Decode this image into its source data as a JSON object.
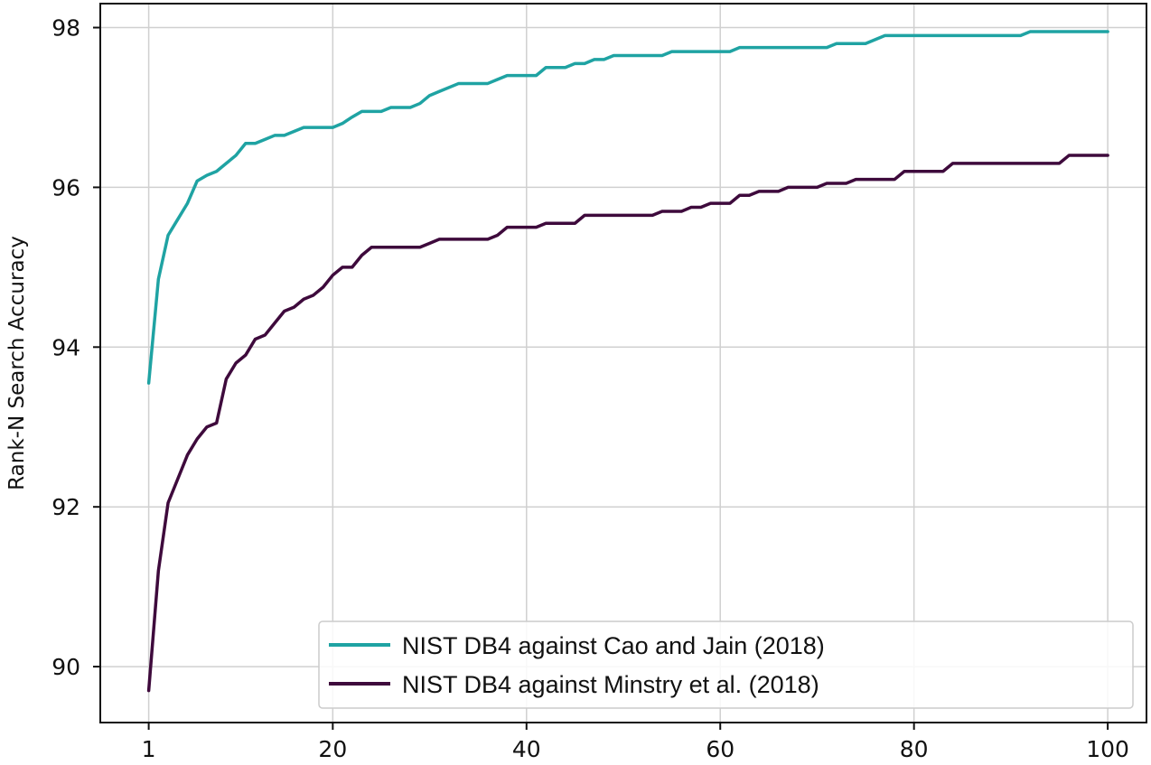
{
  "chart_data": {
    "type": "line",
    "title": "",
    "xlabel": "",
    "ylabel": "Rank-N Search Accuracy",
    "xlim": [
      -4,
      104
    ],
    "ylim": [
      89.3,
      98.3
    ],
    "xticks": [
      1,
      20,
      40,
      60,
      80,
      100
    ],
    "yticks": [
      90,
      92,
      94,
      96,
      98
    ],
    "grid": true,
    "legend_position": "lower-right",
    "series": [
      {
        "name": "NIST DB4 against Cao and Jain (2018)",
        "color": "#1fa3a3",
        "points": [
          [
            1,
            93.55
          ],
          [
            2,
            94.85
          ],
          [
            3,
            95.4
          ],
          [
            4,
            95.6
          ],
          [
            5,
            95.8
          ],
          [
            6,
            96.08
          ],
          [
            7,
            96.15
          ],
          [
            8,
            96.2
          ],
          [
            9,
            96.3
          ],
          [
            10,
            96.4
          ],
          [
            11,
            96.55
          ],
          [
            12,
            96.55
          ],
          [
            13,
            96.6
          ],
          [
            14,
            96.65
          ],
          [
            15,
            96.65
          ],
          [
            16,
            96.7
          ],
          [
            17,
            96.75
          ],
          [
            18,
            96.75
          ],
          [
            20,
            96.75
          ],
          [
            21,
            96.8
          ],
          [
            22,
            96.88
          ],
          [
            23,
            96.95
          ],
          [
            25,
            96.95
          ],
          [
            26,
            97.0
          ],
          [
            28,
            97.0
          ],
          [
            29,
            97.05
          ],
          [
            30,
            97.15
          ],
          [
            31,
            97.2
          ],
          [
            33,
            97.3
          ],
          [
            36,
            97.3
          ],
          [
            37,
            97.35
          ],
          [
            38,
            97.4
          ],
          [
            41,
            97.4
          ],
          [
            42,
            97.5
          ],
          [
            44,
            97.5
          ],
          [
            45,
            97.55
          ],
          [
            46,
            97.55
          ],
          [
            47,
            97.6
          ],
          [
            48,
            97.6
          ],
          [
            49,
            97.65
          ],
          [
            54,
            97.65
          ],
          [
            55,
            97.7
          ],
          [
            61,
            97.7
          ],
          [
            62,
            97.75
          ],
          [
            71,
            97.75
          ],
          [
            72,
            97.8
          ],
          [
            75,
            97.8
          ],
          [
            77,
            97.9
          ],
          [
            91,
            97.9
          ],
          [
            92,
            97.95
          ],
          [
            100,
            97.95
          ]
        ]
      },
      {
        "name": "NIST DB4 against Minstry et al. (2018)",
        "color": "#3e0a3c",
        "points": [
          [
            1,
            89.7
          ],
          [
            2,
            91.2
          ],
          [
            3,
            92.05
          ],
          [
            4,
            92.35
          ],
          [
            5,
            92.65
          ],
          [
            6,
            92.85
          ],
          [
            7,
            93.0
          ],
          [
            8,
            93.05
          ],
          [
            9,
            93.6
          ],
          [
            10,
            93.8
          ],
          [
            11,
            93.9
          ],
          [
            12,
            94.1
          ],
          [
            13,
            94.15
          ],
          [
            14,
            94.3
          ],
          [
            15,
            94.45
          ],
          [
            16,
            94.5
          ],
          [
            17,
            94.6
          ],
          [
            18,
            94.65
          ],
          [
            19,
            94.75
          ],
          [
            20,
            94.9
          ],
          [
            21,
            95.0
          ],
          [
            22,
            95.0
          ],
          [
            23,
            95.15
          ],
          [
            24,
            95.25
          ],
          [
            29,
            95.25
          ],
          [
            30,
            95.3
          ],
          [
            31,
            95.35
          ],
          [
            36,
            95.35
          ],
          [
            37,
            95.4
          ],
          [
            38,
            95.5
          ],
          [
            41,
            95.5
          ],
          [
            42,
            95.55
          ],
          [
            45,
            95.55
          ],
          [
            46,
            95.65
          ],
          [
            53,
            95.65
          ],
          [
            54,
            95.7
          ],
          [
            56,
            95.7
          ],
          [
            57,
            95.75
          ],
          [
            58,
            95.75
          ],
          [
            59,
            95.8
          ],
          [
            61,
            95.8
          ],
          [
            62,
            95.9
          ],
          [
            63,
            95.9
          ],
          [
            64,
            95.95
          ],
          [
            66,
            95.95
          ],
          [
            67,
            96.0
          ],
          [
            70,
            96.0
          ],
          [
            71,
            96.05
          ],
          [
            73,
            96.05
          ],
          [
            74,
            96.1
          ],
          [
            78,
            96.1
          ],
          [
            79,
            96.2
          ],
          [
            83,
            96.2
          ],
          [
            84,
            96.3
          ],
          [
            95,
            96.3
          ],
          [
            96,
            96.4
          ],
          [
            100,
            96.4
          ]
        ]
      }
    ]
  }
}
